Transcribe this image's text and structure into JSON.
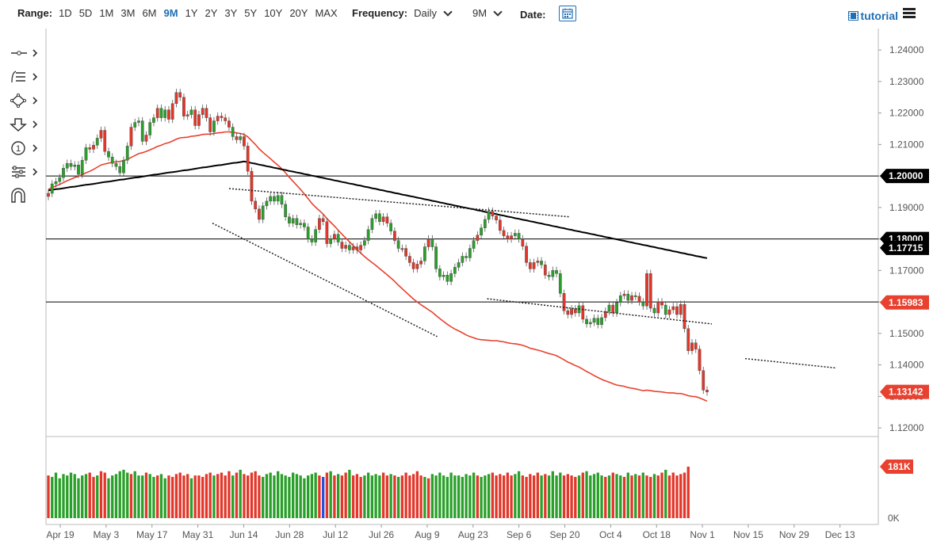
{
  "toolbar": {
    "range_label": "Range:",
    "ranges": [
      "1D",
      "5D",
      "1M",
      "3M",
      "6M",
      "9M",
      "1Y",
      "2Y",
      "3Y",
      "5Y",
      "10Y",
      "20Y",
      "MAX"
    ],
    "active_range": "9M",
    "frequency_label": "Frequency:",
    "frequency_value": "Daily",
    "period_value": "9M",
    "date_label": "Date:",
    "tutorial_label": "tutorial"
  },
  "left_tools": [
    "crosshair-icon",
    "trend-lines-icon",
    "shapes-icon",
    "arrow-down-icon",
    "annotation-icon",
    "indicators-icon",
    "magnet-icon"
  ],
  "chart_data": {
    "type": "candlestick",
    "instrument_note": "",
    "price_axis": {
      "ticks": [
        "1.24000",
        "1.23000",
        "1.22000",
        "1.21000",
        "1.20000",
        "1.19000",
        "1.18000",
        "1.17000",
        "1.16000",
        "1.15000",
        "1.14000",
        "1.13000",
        "1.12000"
      ],
      "ylim": [
        1.1185,
        1.2418
      ]
    },
    "x_ticks": [
      "Apr 19",
      "May 3",
      "May 17",
      "May 31",
      "Jun 14",
      "Jun 28",
      "Jul 12",
      "Jul 26",
      "Aug 9",
      "Aug 23",
      "Sep 6",
      "Sep 20",
      "Oct 4",
      "Oct 18",
      "Nov 1",
      "Nov 15",
      "Nov 29",
      "Dec 13"
    ],
    "horizontal_lines": [
      1.2,
      1.18,
      1.16
    ],
    "price_tags": [
      {
        "label": "1.20000",
        "value": 1.2,
        "color": "#000000"
      },
      {
        "label": "1.18000",
        "value": 1.18,
        "color": "#000000"
      },
      {
        "label": "1.17715",
        "value": 1.17715,
        "color": "#000000"
      },
      {
        "label": "1.15983",
        "value": 1.15983,
        "color": "#e8412f"
      },
      {
        "label": "1.13142",
        "value": 1.13142,
        "color": "#e8412f"
      }
    ],
    "closes": [
      1.1945,
      1.1975,
      1.1982,
      1.1995,
      1.2025,
      1.204,
      1.203,
      1.2035,
      1.2005,
      1.205,
      1.209,
      1.2085,
      1.2098,
      1.212,
      1.2145,
      1.2078,
      1.206,
      1.204,
      1.203,
      1.201,
      1.205,
      1.2095,
      1.2155,
      1.217,
      1.2175,
      1.211,
      1.213,
      1.217,
      1.2185,
      1.2215,
      1.2185,
      1.221,
      1.218,
      1.223,
      1.2265,
      1.225,
      1.219,
      1.2195,
      1.221,
      1.216,
      1.2195,
      1.2215,
      1.2185,
      1.214,
      1.2175,
      1.219,
      1.2185,
      1.2175,
      1.2155,
      1.2125,
      1.2115,
      1.2125,
      1.2095,
      1.2015,
      1.192,
      1.1895,
      1.1862,
      1.1905,
      1.192,
      1.1935,
      1.192,
      1.1938,
      1.191,
      1.187,
      1.185,
      1.1865,
      1.1845,
      1.185,
      1.1838,
      1.18,
      1.179,
      1.183,
      1.1865,
      1.1855,
      1.1785,
      1.18,
      1.1815,
      1.179,
      1.177,
      1.178,
      1.1765,
      1.1775,
      1.1765,
      1.178,
      1.1795,
      1.183,
      1.1865,
      1.188,
      1.1855,
      1.187,
      1.185,
      1.1825,
      1.1795,
      1.177,
      1.177,
      1.1745,
      1.1725,
      1.1705,
      1.172,
      1.173,
      1.1775,
      1.18,
      1.1775,
      1.1705,
      1.168,
      1.1685,
      1.1665,
      1.169,
      1.171,
      1.1725,
      1.1745,
      1.174,
      1.177,
      1.1795,
      1.1812,
      1.1835,
      1.1862,
      1.1888,
      1.1873,
      1.186,
      1.1827,
      1.181,
      1.18,
      1.181,
      1.1818,
      1.18,
      1.1777,
      1.1725,
      1.1705,
      1.1725,
      1.173,
      1.1718,
      1.1685,
      1.168,
      1.17,
      1.169,
      1.1627,
      1.1572,
      1.156,
      1.1578,
      1.1565,
      1.1588,
      1.1545,
      1.153,
      1.1535,
      1.1548,
      1.1528,
      1.155,
      1.157,
      1.159,
      1.1565,
      1.1598,
      1.162,
      1.1625,
      1.1605,
      1.162,
      1.1618,
      1.16,
      1.1587,
      1.169,
      1.158,
      1.1565,
      1.16,
      1.159,
      1.156,
      1.1575,
      1.1585,
      1.156,
      1.1592,
      1.1515,
      1.1445,
      1.147,
      1.145,
      1.1382,
      1.132,
      1.1314
    ],
    "bar_type_code": "01111111111001001111110111011011000000100000100001010000011111111111111100010100100011111001010000001011111111111101110000001100000101111000010111110101101010100100100000000",
    "moving_averages": [
      {
        "period": 50,
        "color": "#e8412f",
        "values": [
          1.1958,
          1.1963,
          1.1968,
          1.1973,
          1.1979,
          1.1985,
          1.199,
          1.1995,
          1.1999,
          1.2004,
          1.201,
          1.2015,
          1.2021,
          1.2028,
          1.2035,
          1.2038,
          1.2041,
          1.2043,
          1.2045,
          1.2046,
          1.2049,
          1.2053,
          1.2059,
          1.2065,
          1.2071,
          1.2074,
          1.2078,
          1.2083,
          1.2088,
          1.2094,
          1.2098,
          1.2103,
          1.2106,
          1.2111,
          1.2117,
          1.2121,
          1.2122,
          1.2123,
          1.2126,
          1.2127,
          1.2129,
          1.2132,
          1.2133,
          1.2133,
          1.2135,
          1.2137,
          1.2138,
          1.214,
          1.214,
          1.2139,
          1.2137,
          1.2135,
          1.2132,
          1.2124,
          1.2112,
          1.21,
          1.2086,
          1.2075,
          1.2065,
          1.2055,
          1.2044,
          1.2034,
          1.2023,
          1.201,
          1.1996,
          1.1983,
          1.197,
          1.1957,
          1.1943,
          1.1928,
          1.1913,
          1.1901,
          1.189,
          1.1879,
          1.1865,
          1.1853,
          1.1841,
          1.1828,
          1.1815,
          1.1803,
          1.1791,
          1.1779,
          1.1766,
          1.1755,
          1.1744,
          1.1734,
          1.1725,
          1.1716,
          1.1706,
          1.1696,
          1.1686,
          1.1676,
          1.1665,
          1.1653,
          1.1642,
          1.1631,
          1.162,
          1.1609,
          1.16,
          1.1591,
          1.1583,
          1.1575,
          1.1567,
          1.1557,
          1.1547,
          1.1538,
          1.1529,
          1.1521,
          1.1514,
          1.1508,
          1.1502,
          1.1495,
          1.149,
          1.1486,
          1.1482,
          1.148,
          1.1479,
          1.1478,
          1.1477,
          1.1477,
          1.1475,
          1.1473,
          1.147,
          1.1468,
          1.1467,
          1.1465,
          1.1462,
          1.1458,
          1.1453,
          1.145,
          1.1447,
          1.1444,
          1.144,
          1.1436,
          1.1433,
          1.1429,
          1.1423,
          1.1416,
          1.1409,
          1.1404,
          1.1398,
          1.1393,
          1.1386,
          1.1379,
          1.1373,
          1.1366,
          1.136,
          1.1354,
          1.1349,
          1.1345,
          1.134,
          1.1336,
          1.1334,
          1.1332,
          1.1328,
          1.1326,
          1.1324,
          1.1321,
          1.1318,
          1.132,
          1.1318,
          1.1316,
          1.1315,
          1.1314,
          1.1312,
          1.1311,
          1.1311,
          1.1309,
          1.1309,
          1.1306,
          1.1302,
          1.13,
          1.1299,
          1.1295,
          1.129,
          1.1285
        ]
      },
      {
        "period": 200,
        "color": "#000000",
        "values": [
          1.1954,
          1.1956,
          1.1958,
          1.1959,
          1.1961,
          1.1963,
          1.1965,
          1.1966,
          1.1968,
          1.197,
          1.1972,
          1.1973,
          1.1975,
          1.1977,
          1.1979,
          1.1981,
          1.1982,
          1.1984,
          1.1986,
          1.1988,
          1.1989,
          1.1991,
          1.1993,
          1.1995,
          1.1996,
          1.1998,
          1.2,
          1.2002,
          1.2004,
          1.2005,
          1.2007,
          1.2009,
          1.2011,
          1.2012,
          1.2014,
          1.2016,
          1.2018,
          1.2019,
          1.2021,
          1.2023,
          1.2025,
          1.2027,
          1.2028,
          1.203,
          1.2032,
          1.2034,
          1.2035,
          1.2037,
          1.2039,
          1.2041,
          1.2042,
          1.2044,
          1.2046,
          1.2044,
          1.2041,
          1.2039,
          1.2036,
          1.2034,
          1.2031,
          1.2029,
          1.2026,
          1.2024,
          1.2021,
          1.2019,
          1.2016,
          1.2014,
          1.2011,
          1.2009,
          1.2006,
          1.2004,
          1.2001,
          1.1999,
          1.1996,
          1.1994,
          1.1991,
          1.1989,
          1.1986,
          1.1984,
          1.1981,
          1.1979,
          1.1976,
          1.1974,
          1.1971,
          1.1969,
          1.1966,
          1.1964,
          1.1961,
          1.1959,
          1.1956,
          1.1954,
          1.1951,
          1.1949,
          1.1946,
          1.1944,
          1.1941,
          1.1939,
          1.1936,
          1.1934,
          1.1931,
          1.1929,
          1.1926,
          1.1924,
          1.1921,
          1.1919,
          1.1916,
          1.1914,
          1.1911,
          1.1909,
          1.1906,
          1.1904,
          1.1901,
          1.1899,
          1.1896,
          1.1894,
          1.1891,
          1.1889,
          1.1886,
          1.1884,
          1.1881,
          1.1879,
          1.1876,
          1.1874,
          1.1871,
          1.1869,
          1.1866,
          1.1864,
          1.1861,
          1.1859,
          1.1856,
          1.1854,
          1.1851,
          1.1849,
          1.1846,
          1.1844,
          1.1841,
          1.1839,
          1.1836,
          1.1834,
          1.1831,
          1.1829,
          1.1826,
          1.1824,
          1.1821,
          1.1819,
          1.1816,
          1.1814,
          1.1811,
          1.1809,
          1.1806,
          1.1804,
          1.1801,
          1.1799,
          1.1796,
          1.1794,
          1.1791,
          1.1789,
          1.1786,
          1.1784,
          1.1781,
          1.1779,
          1.1776,
          1.1774,
          1.1771,
          1.1769,
          1.1766,
          1.1764,
          1.1761,
          1.1759,
          1.1756,
          1.1754,
          1.1751,
          1.1749,
          1.1746,
          1.1744,
          1.1741,
          1.1739
        ]
      }
    ],
    "trendlines": [
      {
        "from": [
          0.2,
          1.185
        ],
        "to": [
          0.47,
          1.149
        ],
        "style": "dotted"
      },
      {
        "from": [
          0.53,
          1.161
        ],
        "to": [
          0.8,
          1.153
        ],
        "style": "dotted"
      },
      {
        "from": [
          0.84,
          1.142
        ],
        "to": [
          0.95,
          1.139
        ],
        "style": "dotted"
      },
      {
        "from": [
          0.22,
          1.196
        ],
        "to": [
          0.63,
          1.187
        ],
        "style": "dotted"
      }
    ],
    "volume": {
      "axis_label_top": "181K",
      "axis_label_bottom": "0K",
      "last": 181,
      "values": [
        150,
        145,
        160,
        140,
        155,
        150,
        160,
        155,
        140,
        150,
        155,
        160,
        145,
        150,
        165,
        160,
        140,
        150,
        155,
        165,
        170,
        160,
        155,
        165,
        150,
        150,
        160,
        155,
        145,
        150,
        155,
        140,
        150,
        145,
        155,
        160,
        150,
        155,
        140,
        150,
        150,
        145,
        155,
        160,
        150,
        155,
        160,
        150,
        165,
        150,
        160,
        170,
        155,
        150,
        160,
        165,
        150,
        145,
        155,
        160,
        150,
        165,
        155,
        150,
        145,
        160,
        155,
        150,
        140,
        150,
        155,
        160,
        150,
        145,
        160,
        165,
        150,
        155,
        150,
        160,
        170,
        150,
        155,
        145,
        150,
        160,
        150,
        155,
        150,
        160,
        150,
        155,
        150,
        145,
        150,
        160,
        150,
        155,
        165,
        150,
        145,
        140,
        155,
        150,
        160,
        150,
        145,
        160,
        150,
        150,
        145,
        155,
        150,
        160,
        150,
        145,
        150,
        155,
        160,
        150,
        155,
        150,
        160,
        150,
        155,
        165,
        150,
        145,
        155,
        150,
        160,
        150,
        155,
        150,
        165,
        150,
        160,
        150,
        155,
        150,
        145,
        150,
        160,
        165,
        150,
        155,
        160,
        150,
        145,
        150,
        160,
        155,
        150,
        145,
        160,
        150,
        155,
        150,
        160,
        150,
        145,
        155,
        150,
        160,
        170,
        150,
        160,
        150,
        155,
        160,
        181
      ],
      "highlight_index": 73
    }
  }
}
